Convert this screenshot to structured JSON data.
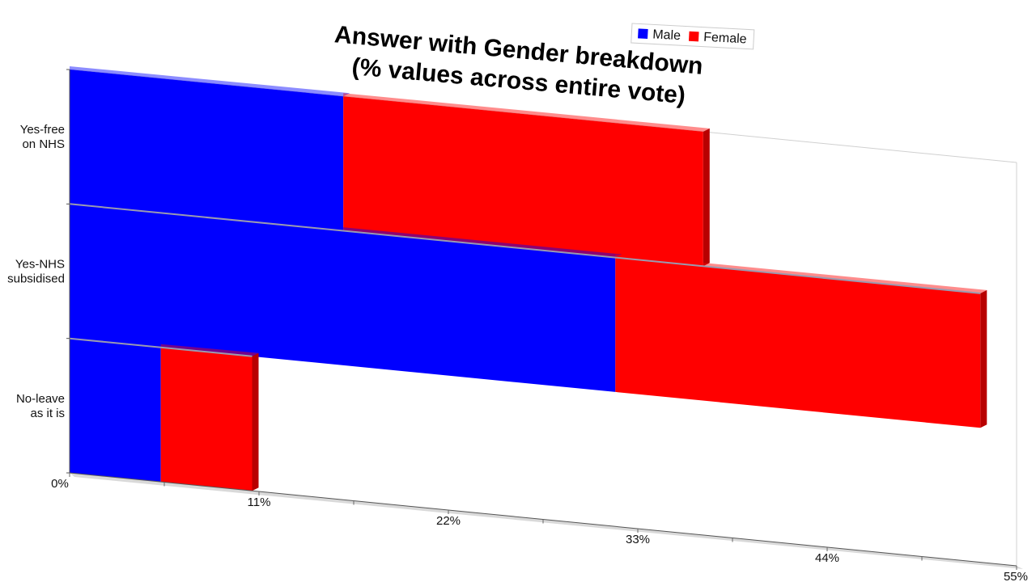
{
  "chart_data": {
    "type": "bar",
    "orientation": "horizontal",
    "stacked": true,
    "title_lines": [
      "Answer with Gender breakdown",
      "(% values across entire vote)"
    ],
    "categories": [
      "Yes-free on NHS",
      "Yes-NHS subsidised",
      "No-leave as it is"
    ],
    "category_label_lines": [
      [
        "Yes-free",
        "on NHS"
      ],
      [
        "Yes-NHS",
        "subsidised"
      ],
      [
        "No-leave",
        "as it is"
      ]
    ],
    "series": [
      {
        "name": "Male",
        "color": "#0000ff",
        "side_color": "#00009e",
        "values": [
          15.9,
          31.7,
          5.3
        ]
      },
      {
        "name": "Female",
        "color": "#ff0000",
        "side_color": "#b80000",
        "values": [
          20.9,
          21.2,
          5.3
        ]
      }
    ],
    "x_ticks": [
      "0%",
      "11%",
      "22%",
      "33%",
      "44%",
      "55%"
    ],
    "xlim": [
      0,
      55
    ],
    "legend_position": "top-right",
    "grid": false,
    "style": "3d-perspective"
  }
}
